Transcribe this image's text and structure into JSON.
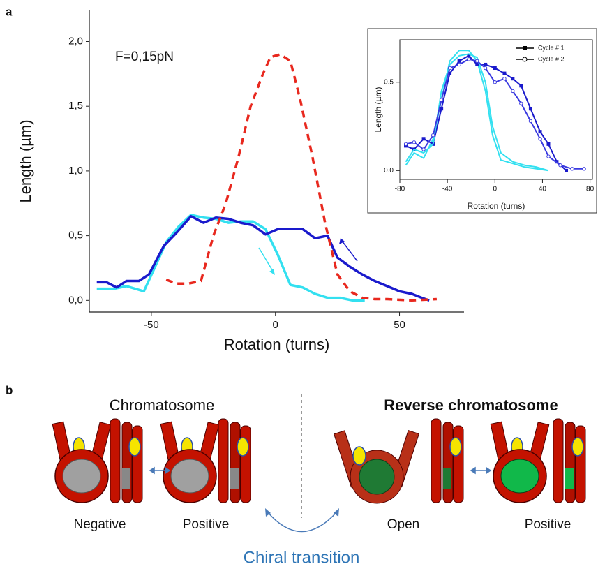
{
  "panels": {
    "a": "a",
    "b": "b"
  },
  "chart_data": [
    {
      "type": "line",
      "annotation": "F=0,15pN",
      "xlabel": "Rotation (turns)",
      "ylabel": "Length (µm)",
      "xlim": [
        -75,
        76
      ],
      "ylim": [
        -0.09,
        2.24
      ],
      "xticks": [
        -50,
        0,
        50
      ],
      "yticks": [
        {
          "value": 0,
          "label": "0,0"
        },
        {
          "value": 0.5,
          "label": "0,5"
        },
        {
          "value": 1,
          "label": "1,0"
        },
        {
          "value": 1.5,
          "label": "1,5"
        },
        {
          "value": 2,
          "label": "2,0"
        }
      ],
      "series": [
        {
          "color": "#33e0f0",
          "x": [
            -72,
            -65,
            -60,
            -53,
            -48,
            -44,
            -39,
            -34,
            -29,
            -24,
            -19,
            -14,
            -9,
            -4,
            1,
            6,
            11,
            16,
            21,
            26,
            31,
            36
          ],
          "values": [
            0.09,
            0.09,
            0.11,
            0.07,
            0.28,
            0.45,
            0.57,
            0.66,
            0.64,
            0.63,
            0.6,
            0.61,
            0.61,
            0.55,
            0.35,
            0.12,
            0.1,
            0.05,
            0.02,
            0.02,
            0.0,
            0.0
          ]
        },
        {
          "color": "#1a1acc",
          "x": [
            -72,
            -68,
            -64,
            -60,
            -55,
            -51,
            -45,
            -40,
            -34,
            -29,
            -24,
            -19,
            -14,
            -9,
            -4,
            1,
            6,
            11,
            16,
            21,
            25,
            30,
            35,
            40,
            45,
            50,
            55,
            59,
            62
          ],
          "values": [
            0.14,
            0.14,
            0.1,
            0.15,
            0.15,
            0.2,
            0.42,
            0.52,
            0.65,
            0.6,
            0.64,
            0.63,
            0.6,
            0.58,
            0.51,
            0.55,
            0.55,
            0.55,
            0.48,
            0.5,
            0.33,
            0.26,
            0.2,
            0.15,
            0.11,
            0.07,
            0.05,
            0.02,
            0.0
          ]
        },
        {
          "color": "#e8281e",
          "dash": true,
          "x": [
            -44,
            -40,
            -35,
            -30,
            -25,
            -20,
            -15,
            -10,
            -5,
            -2,
            2,
            6,
            10,
            15,
            20,
            25,
            30,
            35,
            40,
            45,
            55,
            65
          ],
          "values": [
            0.16,
            0.13,
            0.13,
            0.15,
            0.5,
            0.75,
            1.1,
            1.5,
            1.75,
            1.88,
            1.9,
            1.85,
            1.55,
            1.1,
            0.6,
            0.2,
            0.07,
            0.02,
            0.01,
            0.01,
            0.0,
            0.01
          ]
        }
      ]
    },
    {
      "type": "line",
      "xlabel": "Rotation (turns)",
      "ylabel": "Length (µm)",
      "xlim": [
        -80,
        82
      ],
      "ylim": [
        -0.05,
        0.74
      ],
      "xticks": [
        -80,
        -40,
        0,
        40,
        80
      ],
      "yticks": [
        {
          "value": 0,
          "label": "0.0"
        },
        {
          "value": 0.5,
          "label": "0.5"
        }
      ],
      "series": [
        {
          "color": "#33e0f0",
          "x": [
            -75,
            -68,
            -60,
            -52,
            -45,
            -38,
            -30,
            -22,
            -15,
            -8,
            -2,
            5,
            15,
            25,
            35,
            45
          ],
          "values": [
            0.03,
            0.1,
            0.07,
            0.18,
            0.4,
            0.62,
            0.68,
            0.68,
            0.62,
            0.45,
            0.2,
            0.06,
            0.04,
            0.02,
            0.01,
            0.0
          ]
        },
        {
          "name": "Cycle # 1",
          "color": "#1a1acc",
          "marker": "square",
          "x": [
            -75,
            -68,
            -60,
            -52,
            -45,
            -38,
            -30,
            -22,
            -15,
            -8,
            0,
            8,
            15,
            22,
            30,
            38,
            45,
            52,
            60
          ],
          "values": [
            0.14,
            0.12,
            0.18,
            0.15,
            0.35,
            0.55,
            0.62,
            0.65,
            0.6,
            0.6,
            0.58,
            0.55,
            0.52,
            0.48,
            0.35,
            0.22,
            0.15,
            0.05,
            0.0
          ]
        },
        {
          "color": "#33e0f0",
          "x": [
            -75,
            -68,
            -60,
            -52,
            -45,
            -38,
            -30,
            -22,
            -15,
            -8,
            -2,
            5,
            15,
            25,
            35,
            45
          ],
          "values": [
            0.05,
            0.12,
            0.1,
            0.15,
            0.45,
            0.6,
            0.65,
            0.66,
            0.64,
            0.5,
            0.25,
            0.1,
            0.05,
            0.03,
            0.02,
            0.0
          ]
        },
        {
          "name": "Cycle # 2",
          "color": "#3a3ae0",
          "marker": "circle",
          "x": [
            -75,
            -68,
            -60,
            -52,
            -45,
            -38,
            -30,
            -22,
            -15,
            -8,
            0,
            8,
            15,
            22,
            30,
            38,
            45,
            55,
            65,
            75
          ],
          "values": [
            0.15,
            0.16,
            0.12,
            0.2,
            0.4,
            0.58,
            0.6,
            0.63,
            0.62,
            0.58,
            0.5,
            0.52,
            0.45,
            0.38,
            0.28,
            0.18,
            0.08,
            0.03,
            0.01,
            0.01
          ]
        }
      ]
    }
  ],
  "diagram": {
    "left_title": "Chromatosome",
    "right_title": "Reverse chromatosome",
    "labels": [
      "Negative",
      "Positive",
      "Open",
      "Positive"
    ],
    "transition": "Chiral transition"
  }
}
